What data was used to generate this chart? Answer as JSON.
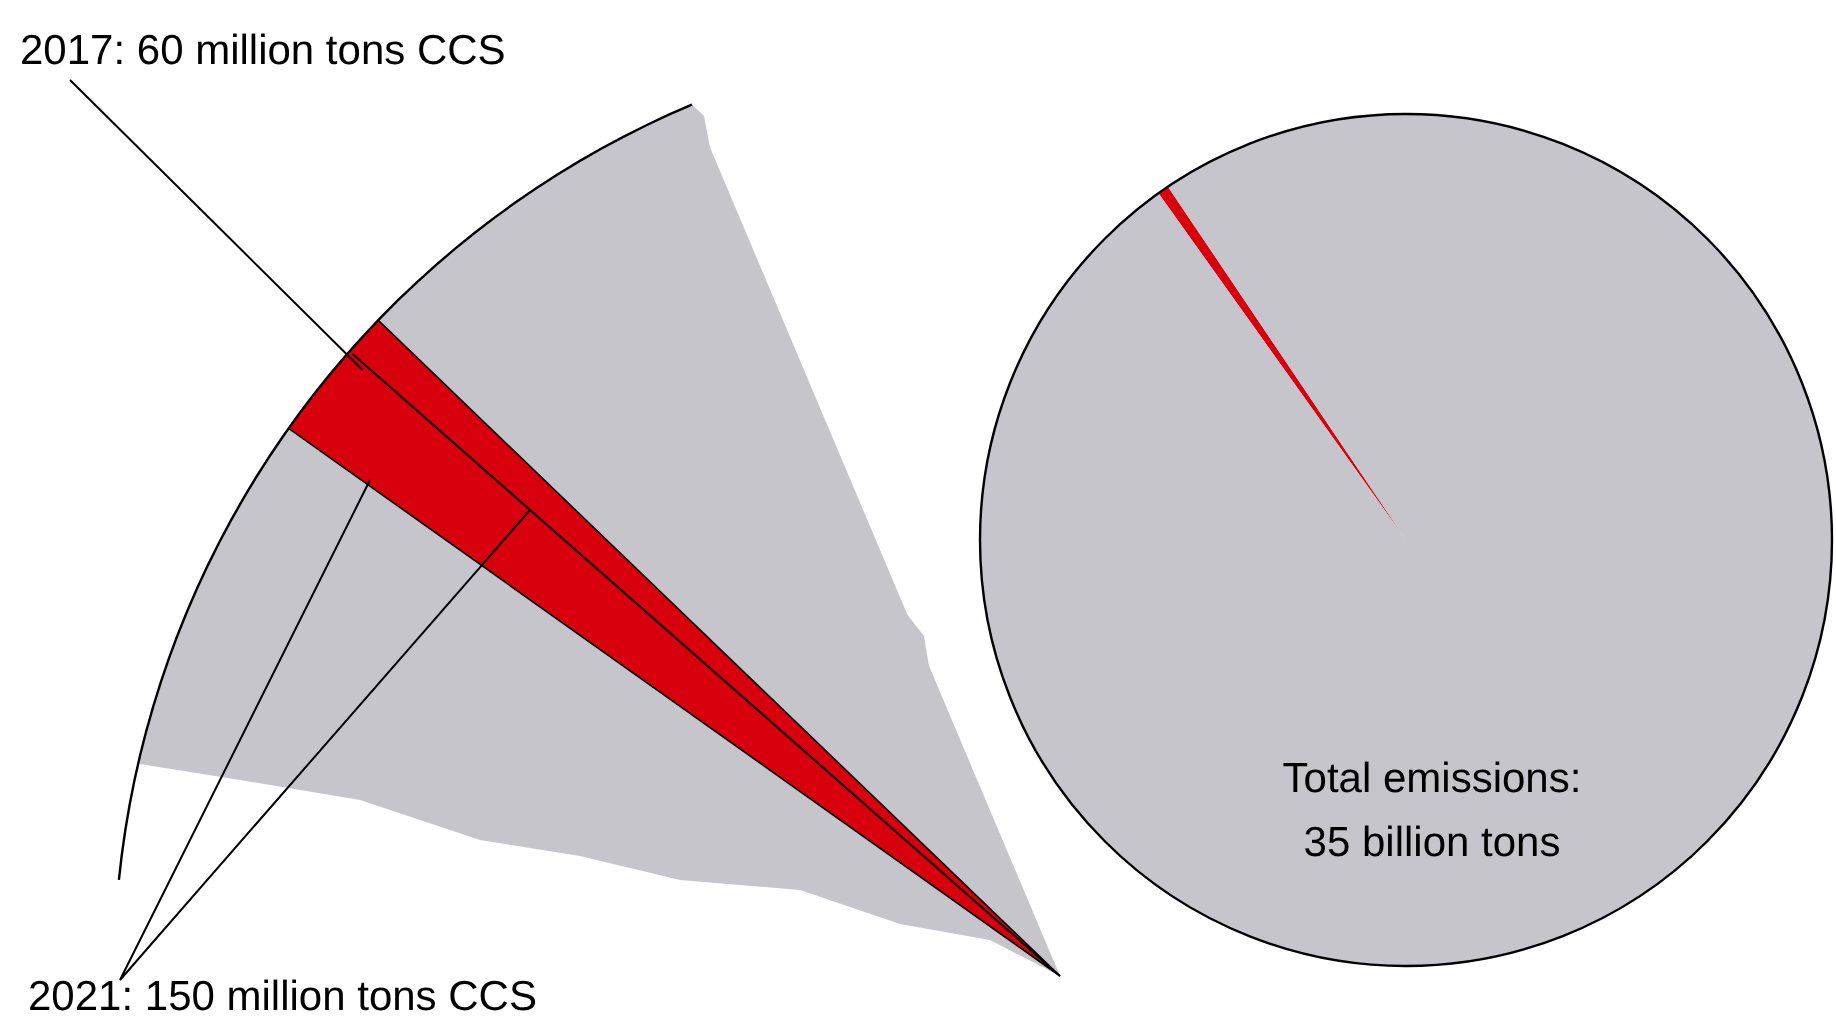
{
  "chart_data": {
    "type": "pie",
    "categories": [
      null,
      null
    ],
    "values": [
      0.43,
      99.57
    ],
    "colors": [
      "#d9000d",
      "#c6c5cc"
    ],
    "annotations": [
      "2017: 60 million tons CCS",
      "Total emissions:\n35 billion tons",
      "2021: 150 million tons CCS"
    ]
  }
}
